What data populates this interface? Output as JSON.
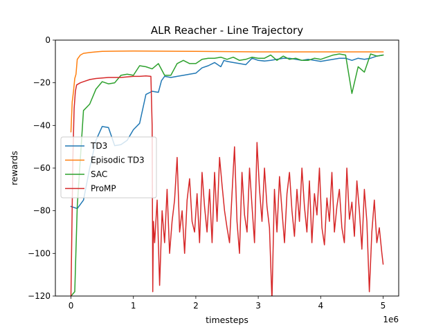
{
  "chart_data": {
    "type": "line",
    "title": "ALR Reacher - Line Trajectory",
    "xlabel": "timesteps",
    "ylabel": "rewards",
    "x_offset_text": "1e6",
    "xlim": [
      -250000,
      5250000
    ],
    "ylim": [
      -120,
      0
    ],
    "x_ticks": [
      0,
      1,
      2,
      3,
      4,
      5
    ],
    "x_tick_labels": [
      "0",
      "1",
      "2",
      "3",
      "4",
      "5"
    ],
    "y_ticks": [
      -120,
      -100,
      -80,
      -60,
      -40,
      -20,
      0
    ],
    "y_tick_labels": [
      "−120",
      "−100",
      "−80",
      "−60",
      "−40",
      "−20",
      "0"
    ],
    "grid": false,
    "legend_position": "center-left",
    "series": [
      {
        "name": "TD3",
        "color": "#1f77b4",
        "x": [
          0,
          100000,
          200000,
          300000,
          400000,
          500000,
          600000,
          700000,
          800000,
          900000,
          1000000,
          1100000,
          1200000,
          1300000,
          1400000,
          1450000,
          1500000,
          1600000,
          1700000,
          1800000,
          1900000,
          2000000,
          2100000,
          2200000,
          2300000,
          2400000,
          2450000,
          2500000,
          2600000,
          2700000,
          2800000,
          2900000,
          3000000,
          3100000,
          3200000,
          3300000,
          3400000,
          3500000,
          3600000,
          3700000,
          3800000,
          3900000,
          4000000,
          4100000,
          4200000,
          4300000,
          4400000,
          4500000,
          4600000,
          4700000,
          4800000,
          4900000,
          5000000
        ],
        "values": [
          -78,
          -79,
          -75,
          -60,
          -47,
          -40.5,
          -41,
          -49.5,
          -49,
          -47,
          -42,
          -39,
          -25.5,
          -24,
          -24.5,
          -19,
          -17,
          -17.5,
          -17,
          -16.5,
          -16,
          -15.5,
          -13,
          -12,
          -10.5,
          -12.5,
          -9.5,
          -10,
          -10.5,
          -11,
          -11.5,
          -8.5,
          -9.5,
          -9.8,
          -9.5,
          -9,
          -8.5,
          -8.5,
          -9,
          -9.5,
          -9,
          -9.5,
          -10,
          -9.5,
          -9,
          -8.5,
          -8.5,
          -9.5,
          -8.5,
          -9,
          -8.5,
          -7.5,
          -7
        ]
      },
      {
        "name": "Episodic TD3",
        "color": "#ff7f0e",
        "x": [
          0,
          20000,
          40000,
          60000,
          80000,
          100000,
          150000,
          200000,
          300000,
          400000,
          500000,
          700000,
          1000000,
          2000000,
          3000000,
          4000000,
          5000000
        ],
        "values": [
          -43,
          -29,
          -24,
          -18,
          -16,
          -9,
          -7,
          -6.2,
          -5.8,
          -5.5,
          -5.3,
          -5.2,
          -5.1,
          -5.3,
          -5.5,
          -5.5,
          -5.5
        ]
      },
      {
        "name": "SAC",
        "color": "#2ca02c",
        "x": [
          0,
          60000,
          100000,
          200000,
          300000,
          400000,
          500000,
          600000,
          700000,
          800000,
          900000,
          1000000,
          1100000,
          1200000,
          1300000,
          1400000,
          1500000,
          1600000,
          1700000,
          1800000,
          1900000,
          2000000,
          2100000,
          2200000,
          2300000,
          2400000,
          2500000,
          2600000,
          2700000,
          2800000,
          2900000,
          3000000,
          3100000,
          3200000,
          3300000,
          3400000,
          3500000,
          3600000,
          3700000,
          3800000,
          3900000,
          4000000,
          4100000,
          4200000,
          4300000,
          4400000,
          4500000,
          4600000,
          4700000,
          4800000,
          4900000,
          5000000
        ],
        "values": [
          -120,
          -118,
          -78,
          -33,
          -30,
          -23,
          -19.5,
          -20.5,
          -20,
          -16.5,
          -16,
          -16.5,
          -12,
          -12.5,
          -13.5,
          -11,
          -16.5,
          -16.5,
          -11,
          -9.5,
          -11,
          -11,
          -9,
          -8.5,
          -8.5,
          -8,
          -9,
          -8,
          -9.5,
          -9,
          -8,
          -8.5,
          -8.5,
          -7,
          -9.5,
          -7.5,
          -9,
          -8.5,
          -9.5,
          -9.5,
          -8.5,
          -9,
          -8,
          -7,
          -6.5,
          -7,
          -25,
          -12.5,
          -15,
          -6.5,
          -7.5,
          -7
        ]
      },
      {
        "name": "ProMP",
        "color": "#d62728",
        "x": [
          0,
          30000,
          50000,
          70000,
          90000,
          120000,
          150000,
          200000,
          300000,
          400000,
          600000,
          800000,
          1000000,
          1100000,
          1200000,
          1280000,
          1300000,
          1310000,
          1320000,
          1340000,
          1380000,
          1420000,
          1460000,
          1500000,
          1540000,
          1580000,
          1620000,
          1660000,
          1700000,
          1740000,
          1780000,
          1820000,
          1860000,
          1900000,
          1940000,
          1980000,
          2020000,
          2060000,
          2100000,
          2140000,
          2180000,
          2220000,
          2260000,
          2300000,
          2340000,
          2380000,
          2420000,
          2460000,
          2500000,
          2540000,
          2580000,
          2620000,
          2660000,
          2700000,
          2740000,
          2780000,
          2820000,
          2860000,
          2900000,
          2940000,
          2980000,
          3020000,
          3060000,
          3100000,
          3140000,
          3180000,
          3220000,
          3260000,
          3300000,
          3340000,
          3380000,
          3420000,
          3460000,
          3500000,
          3540000,
          3580000,
          3620000,
          3660000,
          3700000,
          3740000,
          3780000,
          3820000,
          3860000,
          3900000,
          3940000,
          3980000,
          4020000,
          4060000,
          4100000,
          4140000,
          4180000,
          4220000,
          4260000,
          4300000,
          4340000,
          4380000,
          4420000,
          4460000,
          4500000,
          4540000,
          4580000,
          4620000,
          4660000,
          4700000,
          4740000,
          4780000,
          4820000,
          4860000,
          4900000,
          4940000,
          4980000,
          5000000
        ],
        "values": [
          -120,
          -55,
          -32,
          -24,
          -21,
          -20.5,
          -20,
          -19.5,
          -18.5,
          -18,
          -17.5,
          -17.5,
          -17,
          -17,
          -16.8,
          -17,
          -40,
          -118,
          -85,
          -95,
          -75,
          -115,
          -80,
          -95,
          -70,
          -100,
          -85,
          -75,
          -55,
          -90,
          -80,
          -100,
          -75,
          -65,
          -85,
          -90,
          -72,
          -95,
          -62,
          -78,
          -90,
          -70,
          -95,
          -62,
          -85,
          -55,
          -68,
          -80,
          -88,
          -95,
          -72,
          -50,
          -85,
          -100,
          -62,
          -82,
          -90,
          -60,
          -78,
          -95,
          -48,
          -70,
          -85,
          -60,
          -78,
          -88,
          -122,
          -70,
          -90,
          -64,
          -80,
          -95,
          -72,
          -62,
          -80,
          -92,
          -70,
          -85,
          -60,
          -78,
          -90,
          -66,
          -95,
          -72,
          -82,
          -60,
          -88,
          -96,
          -74,
          -85,
          -62,
          -90,
          -78,
          -70,
          -88,
          -95,
          -60,
          -84,
          -76,
          -92,
          -66,
          -80,
          -98,
          -70,
          -85,
          -118,
          -90,
          -75,
          -95,
          -88,
          -100,
          -105
        ]
      }
    ]
  }
}
